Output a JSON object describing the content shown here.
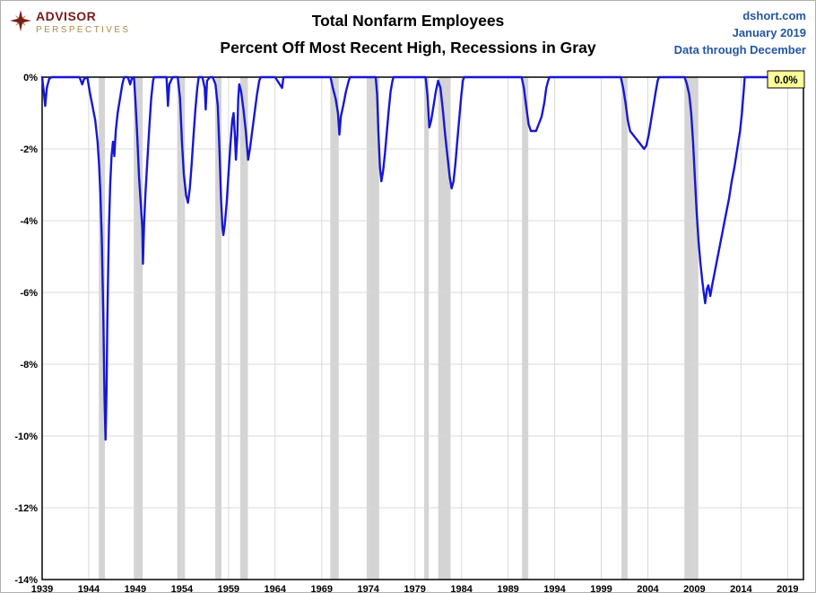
{
  "page": {
    "logo": {
      "line1": "ADVISOR",
      "line2": "PERSPECTIVES"
    },
    "title_line1": "Total Nonfarm Employees",
    "title_line2": "Percent Off Most Recent High, Recessions in Gray",
    "source": {
      "line1": "dshort.com",
      "line2": "January 2019",
      "line3": "Data through December"
    }
  },
  "chart_data": {
    "type": "line",
    "title": "Total Nonfarm Employees",
    "subtitle": "Percent Off Most Recent High, Recessions in Gray",
    "xlabel": "",
    "ylabel": "",
    "xlim": [
      1939,
      2020.7
    ],
    "ylim": [
      -14,
      0
    ],
    "grid": true,
    "legend_position": "none",
    "xticks": [
      1939,
      1944,
      1949,
      1954,
      1959,
      1964,
      1969,
      1974,
      1979,
      1984,
      1989,
      1994,
      1999,
      2004,
      2009,
      2014,
      2019
    ],
    "xtick_labels": [
      "1939",
      "1944",
      "1949",
      "1954",
      "1959",
      "1964",
      "1969",
      "1974",
      "1979",
      "1984",
      "1989",
      "1994",
      "1999",
      "2004",
      "2009",
      "2014",
      "2019"
    ],
    "yticks": [
      0,
      -2,
      -4,
      -6,
      -8,
      -10,
      -12,
      -14
    ],
    "ytick_labels": [
      "0%",
      "-2%",
      "-4%",
      "-6%",
      "-8%",
      "-10%",
      "-12%",
      "-14%"
    ],
    "end_label": "0.0%",
    "colors": {
      "line": "#1717d6",
      "recession": "#d4d4d4",
      "grid": "#d9d9d9",
      "border": "#000000",
      "end_label_bg": "#ffff99",
      "end_label_border": "#000000",
      "label_text": "#000000"
    },
    "recessions": [
      [
        1945.08,
        1945.75
      ],
      [
        1948.83,
        1949.79
      ],
      [
        1953.5,
        1954.33
      ],
      [
        1957.58,
        1958.25
      ],
      [
        1960.25,
        1961.08
      ],
      [
        1969.92,
        1970.83
      ],
      [
        1973.83,
        1975.17
      ],
      [
        1980.0,
        1980.5
      ],
      [
        1981.5,
        1982.83
      ],
      [
        1990.5,
        1991.17
      ],
      [
        2001.17,
        2001.83
      ],
      [
        2007.92,
        2009.42
      ]
    ],
    "series": [
      {
        "name": "Percent off most recent high",
        "points": [
          [
            1939.0,
            0
          ],
          [
            1939.17,
            -0.4
          ],
          [
            1939.33,
            -0.8
          ],
          [
            1939.5,
            -0.3
          ],
          [
            1939.75,
            -0.05
          ],
          [
            1940.0,
            0
          ],
          [
            1940.5,
            0
          ],
          [
            1941.0,
            0
          ],
          [
            1941.5,
            0
          ],
          [
            1942.0,
            0
          ],
          [
            1942.5,
            0
          ],
          [
            1943.0,
            0
          ],
          [
            1943.3,
            -0.2
          ],
          [
            1943.5,
            -0.05
          ],
          [
            1943.85,
            0
          ],
          [
            1944.1,
            -0.4
          ],
          [
            1944.4,
            -0.8
          ],
          [
            1944.7,
            -1.2
          ],
          [
            1944.95,
            -1.8
          ],
          [
            1945.1,
            -2.4
          ],
          [
            1945.25,
            -3.2
          ],
          [
            1945.4,
            -4.5
          ],
          [
            1945.55,
            -6.5
          ],
          [
            1945.7,
            -9.0
          ],
          [
            1945.8,
            -10.1
          ],
          [
            1945.92,
            -8.6
          ],
          [
            1946.0,
            -6.8
          ],
          [
            1946.08,
            -5.4
          ],
          [
            1946.17,
            -4.2
          ],
          [
            1946.3,
            -3.0
          ],
          [
            1946.45,
            -2.2
          ],
          [
            1946.6,
            -1.8
          ],
          [
            1946.75,
            -2.2
          ],
          [
            1946.9,
            -1.5
          ],
          [
            1947.1,
            -1.0
          ],
          [
            1947.35,
            -0.6
          ],
          [
            1947.6,
            -0.2
          ],
          [
            1947.8,
            0
          ],
          [
            1948.2,
            0
          ],
          [
            1948.45,
            -0.2
          ],
          [
            1948.6,
            -0.05
          ],
          [
            1948.85,
            0
          ],
          [
            1949.0,
            -0.6
          ],
          [
            1949.2,
            -1.6
          ],
          [
            1949.4,
            -2.8
          ],
          [
            1949.6,
            -3.6
          ],
          [
            1949.75,
            -4.2
          ],
          [
            1949.82,
            -5.2
          ],
          [
            1949.95,
            -4.0
          ],
          [
            1950.1,
            -3.2
          ],
          [
            1950.3,
            -2.3
          ],
          [
            1950.5,
            -1.4
          ],
          [
            1950.7,
            -0.6
          ],
          [
            1950.9,
            -0.1
          ],
          [
            1951.0,
            0
          ],
          [
            1951.5,
            0
          ],
          [
            1952.0,
            0
          ],
          [
            1952.35,
            0
          ],
          [
            1952.5,
            -0.8
          ],
          [
            1952.65,
            -0.2
          ],
          [
            1953.0,
            0
          ],
          [
            1953.55,
            0
          ],
          [
            1953.8,
            -0.6
          ],
          [
            1954.0,
            -1.8
          ],
          [
            1954.2,
            -2.7
          ],
          [
            1954.45,
            -3.3
          ],
          [
            1954.65,
            -3.5
          ],
          [
            1954.85,
            -3.1
          ],
          [
            1955.05,
            -2.4
          ],
          [
            1955.25,
            -1.6
          ],
          [
            1955.45,
            -0.9
          ],
          [
            1955.65,
            -0.3
          ],
          [
            1955.8,
            0
          ],
          [
            1956.2,
            0
          ],
          [
            1956.45,
            -0.3
          ],
          [
            1956.55,
            -0.9
          ],
          [
            1956.7,
            -0.1
          ],
          [
            1957.0,
            0
          ],
          [
            1957.3,
            0
          ],
          [
            1957.6,
            -0.2
          ],
          [
            1957.85,
            -0.8
          ],
          [
            1958.05,
            -2.2
          ],
          [
            1958.2,
            -3.4
          ],
          [
            1958.35,
            -4.2
          ],
          [
            1958.45,
            -4.4
          ],
          [
            1958.6,
            -4.1
          ],
          [
            1958.8,
            -3.5
          ],
          [
            1959.0,
            -2.7
          ],
          [
            1959.2,
            -1.9
          ],
          [
            1959.4,
            -1.2
          ],
          [
            1959.55,
            -1.0
          ],
          [
            1959.7,
            -1.7
          ],
          [
            1959.8,
            -2.3
          ],
          [
            1959.95,
            -1.6
          ],
          [
            1960.05,
            -0.6
          ],
          [
            1960.15,
            -0.2
          ],
          [
            1960.35,
            -0.4
          ],
          [
            1960.6,
            -0.9
          ],
          [
            1960.85,
            -1.5
          ],
          [
            1961.1,
            -2.3
          ],
          [
            1961.3,
            -2.0
          ],
          [
            1961.55,
            -1.5
          ],
          [
            1961.8,
            -1.0
          ],
          [
            1962.05,
            -0.5
          ],
          [
            1962.3,
            -0.1
          ],
          [
            1962.45,
            0
          ],
          [
            1963.0,
            0
          ],
          [
            1964.0,
            0
          ],
          [
            1964.75,
            -0.3
          ],
          [
            1964.9,
            0
          ],
          [
            1965.5,
            0
          ],
          [
            1966.5,
            0
          ],
          [
            1967.5,
            0
          ],
          [
            1968.5,
            0
          ],
          [
            1969.5,
            0
          ],
          [
            1969.95,
            0
          ],
          [
            1970.2,
            -0.3
          ],
          [
            1970.5,
            -0.6
          ],
          [
            1970.75,
            -1.0
          ],
          [
            1970.9,
            -1.6
          ],
          [
            1971.05,
            -1.1
          ],
          [
            1971.3,
            -0.8
          ],
          [
            1971.6,
            -0.4
          ],
          [
            1971.9,
            -0.1
          ],
          [
            1972.05,
            0
          ],
          [
            1973.0,
            0
          ],
          [
            1974.0,
            0
          ],
          [
            1974.8,
            0
          ],
          [
            1974.95,
            -0.5
          ],
          [
            1975.1,
            -1.6
          ],
          [
            1975.25,
            -2.5
          ],
          [
            1975.4,
            -2.9
          ],
          [
            1975.6,
            -2.6
          ],
          [
            1975.8,
            -2.1
          ],
          [
            1976.0,
            -1.5
          ],
          [
            1976.2,
            -0.9
          ],
          [
            1976.4,
            -0.4
          ],
          [
            1976.6,
            -0.1
          ],
          [
            1976.7,
            0
          ],
          [
            1977.5,
            0
          ],
          [
            1978.5,
            0
          ],
          [
            1979.5,
            0
          ],
          [
            1980.15,
            0
          ],
          [
            1980.35,
            -0.5
          ],
          [
            1980.55,
            -1.4
          ],
          [
            1980.75,
            -1.2
          ],
          [
            1981.0,
            -0.8
          ],
          [
            1981.25,
            -0.4
          ],
          [
            1981.5,
            -0.1
          ],
          [
            1981.75,
            -0.3
          ],
          [
            1982.0,
            -0.9
          ],
          [
            1982.25,
            -1.6
          ],
          [
            1982.5,
            -2.2
          ],
          [
            1982.75,
            -2.8
          ],
          [
            1982.95,
            -3.1
          ],
          [
            1983.15,
            -2.9
          ],
          [
            1983.35,
            -2.4
          ],
          [
            1983.55,
            -1.8
          ],
          [
            1983.75,
            -1.2
          ],
          [
            1983.95,
            -0.6
          ],
          [
            1984.15,
            -0.1
          ],
          [
            1984.3,
            0
          ],
          [
            1985.0,
            0
          ],
          [
            1986.0,
            0
          ],
          [
            1987.0,
            0
          ],
          [
            1988.0,
            0
          ],
          [
            1989.0,
            0
          ],
          [
            1990.45,
            0
          ],
          [
            1990.7,
            -0.3
          ],
          [
            1990.95,
            -0.8
          ],
          [
            1991.2,
            -1.3
          ],
          [
            1991.45,
            -1.5
          ],
          [
            1991.7,
            -1.5
          ],
          [
            1992.0,
            -1.5
          ],
          [
            1992.3,
            -1.3
          ],
          [
            1992.6,
            -1.1
          ],
          [
            1992.9,
            -0.7
          ],
          [
            1993.1,
            -0.3
          ],
          [
            1993.3,
            -0.1
          ],
          [
            1993.45,
            0
          ],
          [
            1994.0,
            0
          ],
          [
            1995.0,
            0
          ],
          [
            1996.0,
            0
          ],
          [
            1997.0,
            0
          ],
          [
            1998.0,
            0
          ],
          [
            1999.0,
            0
          ],
          [
            2000.0,
            0
          ],
          [
            2001.1,
            0
          ],
          [
            2001.35,
            -0.3
          ],
          [
            2001.6,
            -0.7
          ],
          [
            2001.85,
            -1.2
          ],
          [
            2002.1,
            -1.5
          ],
          [
            2002.4,
            -1.6
          ],
          [
            2002.7,
            -1.7
          ],
          [
            2003.0,
            -1.8
          ],
          [
            2003.3,
            -1.9
          ],
          [
            2003.6,
            -2.0
          ],
          [
            2003.85,
            -1.9
          ],
          [
            2004.1,
            -1.6
          ],
          [
            2004.35,
            -1.2
          ],
          [
            2004.6,
            -0.8
          ],
          [
            2004.85,
            -0.4
          ],
          [
            2005.05,
            -0.1
          ],
          [
            2005.2,
            0
          ],
          [
            2006.0,
            0
          ],
          [
            2007.0,
            0
          ],
          [
            2007.95,
            0
          ],
          [
            2008.2,
            -0.2
          ],
          [
            2008.45,
            -0.5
          ],
          [
            2008.65,
            -1.0
          ],
          [
            2008.85,
            -1.8
          ],
          [
            2009.05,
            -2.8
          ],
          [
            2009.25,
            -3.8
          ],
          [
            2009.45,
            -4.6
          ],
          [
            2009.65,
            -5.2
          ],
          [
            2009.85,
            -5.7
          ],
          [
            2010.0,
            -6.0
          ],
          [
            2010.15,
            -6.3
          ],
          [
            2010.35,
            -5.9
          ],
          [
            2010.5,
            -5.8
          ],
          [
            2010.7,
            -6.1
          ],
          [
            2010.9,
            -5.8
          ],
          [
            2011.2,
            -5.4
          ],
          [
            2011.5,
            -5.0
          ],
          [
            2011.8,
            -4.6
          ],
          [
            2012.1,
            -4.2
          ],
          [
            2012.4,
            -3.8
          ],
          [
            2012.7,
            -3.4
          ],
          [
            2013.0,
            -2.9
          ],
          [
            2013.3,
            -2.5
          ],
          [
            2013.6,
            -2.0
          ],
          [
            2013.9,
            -1.5
          ],
          [
            2014.1,
            -1.0
          ],
          [
            2014.25,
            -0.5
          ],
          [
            2014.4,
            0
          ],
          [
            2015.0,
            0
          ],
          [
            2016.0,
            0
          ],
          [
            2017.0,
            0
          ],
          [
            2018.0,
            0
          ],
          [
            2018.95,
            0
          ]
        ]
      }
    ]
  }
}
